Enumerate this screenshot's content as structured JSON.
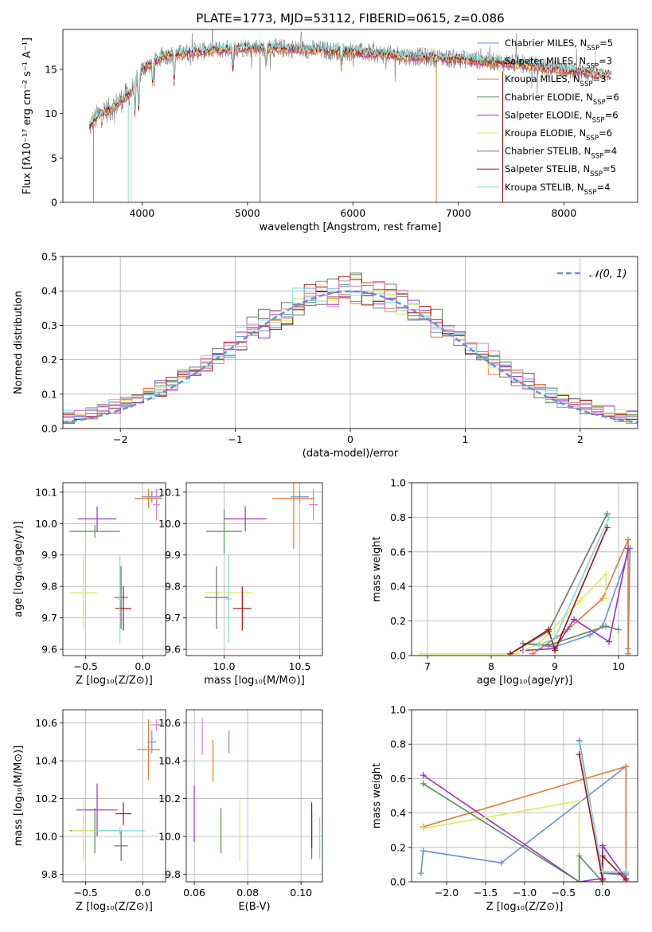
{
  "title": "PLATE=1773, MJD=53112, FIBERID=0615, z=0.086",
  "colors": {
    "chabrier_miles": "#6a8ed6",
    "salpeter_miles": "#5b8c5a",
    "kroupa_miles": "#e07b39",
    "chabrier_elodie": "#5b8c5a",
    "salpeter_elodie": "#9b30c0",
    "kroupa_elodie": "#d8ec5a",
    "chabrier_stelib": "#707070",
    "salpeter_stelib": "#a01010",
    "kroupa_stelib": "#7fdce0",
    "pink": "#e080c0",
    "gaussian": "#6a8ed6"
  },
  "chart_data": [
    {
      "id": "spectrum",
      "type": "line",
      "xlabel": "wavelength [Angstrom, rest frame]",
      "ylabel": "Flux [fλ10⁻¹⁷ erg cm⁻² s⁻¹ A⁻¹]",
      "xlim": [
        3250,
        8700
      ],
      "ylim": [
        0,
        19.5
      ],
      "xticks": [
        4000,
        5000,
        6000,
        7000,
        8000
      ],
      "yticks": [
        0,
        5,
        10,
        15
      ],
      "grid": false,
      "legend": [
        "Chabrier MILES, N_SSP=5",
        "Salpeter MILES, N_SSP=3",
        "Kroupa MILES, N_SSP=3",
        "Chabrier ELODIE, N_SSP=6",
        "Salpeter ELODIE, N_SSP=6",
        "Kroupa ELODIE, N_SSP=6",
        "Chabrier STELIB, N_SSP=4",
        "Salpeter STELIB, N_SSP=5",
        "Kroupa STELIB, N_SSP=4"
      ],
      "legend_position": "right",
      "continuum": [
        [
          3500,
          8.5
        ],
        [
          3600,
          10.0
        ],
        [
          3700,
          10.5
        ],
        [
          3800,
          11.5
        ],
        [
          3900,
          12.5
        ],
        [
          4000,
          15.0
        ],
        [
          4200,
          16.5
        ],
        [
          4500,
          17.0
        ],
        [
          5000,
          17.5
        ],
        [
          5500,
          17.3
        ],
        [
          6000,
          17.0
        ],
        [
          6500,
          16.5
        ],
        [
          7000,
          16.2
        ],
        [
          7500,
          15.7
        ],
        [
          8000,
          15.0
        ],
        [
          8500,
          14.3
        ]
      ],
      "absorption_lines": [
        [
          3934,
          10.0
        ],
        [
          3969,
          10.5
        ],
        [
          4102,
          13.0
        ],
        [
          4305,
          13.5
        ],
        [
          4862,
          15.0
        ],
        [
          5175,
          15.2
        ],
        [
          5890,
          15.3
        ]
      ],
      "model_range": [
        3500,
        8450
      ],
      "data_range": [
        3500,
        8300
      ]
    },
    {
      "id": "residuals",
      "type": "histogram",
      "xlabel": "(data-model)/error",
      "ylabel": "Normed distribution",
      "xlim": [
        -2.5,
        2.5
      ],
      "ylim": [
        0,
        0.5
      ],
      "xticks": [
        -2,
        -1,
        0,
        1,
        2
      ],
      "yticks": [
        0.0,
        0.1,
        0.2,
        0.3,
        0.4,
        0.5
      ],
      "grid": true,
      "legend": "𝒩(0, 1)",
      "legend_position": "top-right",
      "bin_width": 0.1,
      "series_count": 9
    },
    {
      "id": "age-vs-Z",
      "type": "errorbar",
      "xlabel": "Z [log₁₀(Z/Z⊙)]",
      "ylabel": "age  [log₁₀(age/yr)]",
      "xlim": [
        -0.7,
        0.2
      ],
      "ylim": [
        9.58,
        10.13
      ],
      "xticks": [
        -0.5,
        0.0
      ],
      "yticks": [
        9.6,
        9.7,
        9.8,
        9.9,
        10.0,
        10.1
      ],
      "grid": true,
      "points": [
        {
          "c": "chabrier_miles",
          "x": 0.08,
          "xerr": 0.09,
          "y": 10.085,
          "yerr": 0.02
        },
        {
          "c": "salpeter_miles",
          "x": -0.42,
          "xerr": 0.22,
          "y": 9.975,
          "yerr": 0.02
        },
        {
          "c": "kroupa_miles",
          "x": 0.05,
          "xerr": 0.12,
          "y": 10.08,
          "yerr": 0.03
        },
        {
          "c": "salpeter_elodie",
          "x": -0.4,
          "xerr": 0.17,
          "y": 10.015,
          "yerr": 0.04
        },
        {
          "c": "kroupa_elodie",
          "x": -0.52,
          "xerr": 0.12,
          "y": 9.78,
          "yerr": 0.12
        },
        {
          "c": "chabrier_stelib",
          "x": -0.19,
          "xerr": 0.06,
          "y": 9.765,
          "yerr": 0.1
        },
        {
          "c": "salpeter_stelib",
          "x": -0.17,
          "xerr": 0.07,
          "y": 9.73,
          "yerr": 0.07
        },
        {
          "c": "kroupa_stelib",
          "x": -0.2,
          "xerr": 0.02,
          "y": 9.76,
          "yerr": 0.14
        },
        {
          "c": "pink",
          "x": 0.12,
          "xerr": 0.03,
          "y": 10.06,
          "yerr": 0.05
        }
      ]
    },
    {
      "id": "age-vs-mass",
      "type": "errorbar",
      "xlabel": "mass [log₁₀(M/M⊙)]",
      "ylabel": "",
      "xlim": [
        9.75,
        10.65
      ],
      "ylim": [
        9.58,
        10.13
      ],
      "xticks": [
        10.0,
        10.5
      ],
      "yticks": [
        9.6,
        9.7,
        9.8,
        9.9,
        10.0,
        10.1
      ],
      "grid": true,
      "points": [
        {
          "c": "chabrier_miles",
          "x": 10.5,
          "xerr": 0.06,
          "y": 10.085,
          "yerr": 0.02
        },
        {
          "c": "salpeter_miles",
          "x": 10.0,
          "xerr": 0.12,
          "y": 9.975,
          "yerr": 0.07
        },
        {
          "c": "kroupa_miles",
          "x": 10.46,
          "xerr": 0.14,
          "y": 10.08,
          "yerr": 0.16
        },
        {
          "c": "salpeter_elodie",
          "x": 10.14,
          "xerr": 0.14,
          "y": 10.015,
          "yerr": 0.04
        },
        {
          "c": "kroupa_elodie",
          "x": 10.03,
          "xerr": 0.16,
          "y": 9.78,
          "yerr": 0.12
        },
        {
          "c": "chabrier_stelib",
          "x": 9.95,
          "xerr": 0.08,
          "y": 9.765,
          "yerr": 0.1
        },
        {
          "c": "salpeter_stelib",
          "x": 10.12,
          "xerr": 0.06,
          "y": 9.73,
          "yerr": 0.07
        },
        {
          "c": "kroupa_stelib",
          "x": 10.03,
          "xerr": 0.02,
          "y": 9.76,
          "yerr": 0.14
        },
        {
          "c": "pink",
          "x": 10.59,
          "xerr": 0.03,
          "y": 10.06,
          "yerr": 0.05
        }
      ]
    },
    {
      "id": "weight-vs-age",
      "type": "line",
      "xlabel": "age  [log₁₀(age/yr)]",
      "ylabel": "mass weight",
      "xlim": [
        6.75,
        10.3
      ],
      "ylim": [
        0,
        1.0
      ],
      "xticks": [
        7,
        8,
        9,
        10
      ],
      "yticks": [
        0.0,
        0.2,
        0.4,
        0.6,
        0.8,
        1.0
      ],
      "grid": true,
      "series": [
        {
          "c": "chabrier_miles",
          "x": [
            8.5,
            9.0,
            9.55,
            9.75,
            10.18,
            10.15
          ],
          "y": [
            0.07,
            0.05,
            0.12,
            0.17,
            0.62,
            0.04
          ]
        },
        {
          "c": "kroupa_miles",
          "x": [
            8.65,
            9.2,
            9.75,
            10.15,
            10.15
          ],
          "y": [
            0.01,
            0.15,
            0.33,
            0.67,
            0.01
          ]
        },
        {
          "c": "salpeter_elodie",
          "x": [
            8.5,
            9.0,
            9.3,
            9.85,
            10.15
          ],
          "y": [
            0.03,
            0.04,
            0.21,
            0.08,
            0.62
          ]
        },
        {
          "c": "kroupa_elodie",
          "x": [
            6.9,
            8.4,
            8.75,
            9.4,
            9.8,
            9.8
          ],
          "y": [
            0.01,
            0.01,
            0.07,
            0.32,
            0.47,
            0.33
          ]
        },
        {
          "c": "salpeter_miles",
          "x": [
            8.5,
            8.9,
            9.8,
            10.0
          ],
          "y": [
            0.07,
            0.06,
            0.17,
            0.15
          ]
        },
        {
          "c": "chabrier_stelib",
          "x": [
            8.3,
            8.9,
            9.82
          ],
          "y": [
            0.01,
            0.14,
            0.82
          ]
        },
        {
          "c": "salpeter_stelib",
          "x": [
            8.3,
            8.9,
            9.0,
            9.82
          ],
          "y": [
            0.01,
            0.15,
            0.03,
            0.74
          ]
        },
        {
          "c": "kroupa_stelib",
          "x": [
            8.75,
            9.0,
            9.85
          ],
          "y": [
            0.06,
            0.1,
            0.8
          ]
        }
      ]
    },
    {
      "id": "mass-vs-Z",
      "type": "errorbar",
      "xlabel": "Z [log₁₀(Z/Z⊙)]",
      "ylabel": "mass [log₁₀(M/M⊙)]",
      "xlim": [
        -0.7,
        0.2
      ],
      "ylim": [
        9.76,
        10.67
      ],
      "xticks": [
        -0.5,
        0.0
      ],
      "yticks": [
        9.8,
        10.0,
        10.2,
        10.4,
        10.6
      ],
      "grid": true,
      "points": [
        {
          "c": "chabrier_miles",
          "x": 0.08,
          "xerr": 0.04,
          "y": 10.5,
          "yerr": 0.06
        },
        {
          "c": "salpeter_miles",
          "x": -0.42,
          "xerr": 0.22,
          "y": 10.03,
          "yerr": 0.12
        },
        {
          "c": "kroupa_miles",
          "x": 0.05,
          "xerr": 0.1,
          "y": 10.46,
          "yerr": 0.16
        },
        {
          "c": "salpeter_elodie",
          "x": -0.4,
          "xerr": 0.18,
          "y": 10.14,
          "yerr": 0.14
        },
        {
          "c": "kroupa_elodie",
          "x": -0.52,
          "xerr": 0.1,
          "y": 10.03,
          "yerr": 0.16
        },
        {
          "c": "chabrier_stelib",
          "x": -0.19,
          "xerr": 0.06,
          "y": 9.95,
          "yerr": 0.08
        },
        {
          "c": "salpeter_stelib",
          "x": -0.17,
          "xerr": 0.07,
          "y": 10.12,
          "yerr": 0.06
        },
        {
          "c": "kroupa_stelib",
          "x": -0.2,
          "xerr": 0.22,
          "y": 10.03,
          "yerr": 0.02
        },
        {
          "c": "pink",
          "x": 0.12,
          "xerr": 0.05,
          "y": 10.59,
          "yerr": 0.03
        }
      ]
    },
    {
      "id": "mass-vs-ebv",
      "type": "errorbar",
      "xlabel": "E(B-V)",
      "ylabel": "",
      "xlim": [
        0.057,
        0.108
      ],
      "ylim": [
        9.76,
        10.67
      ],
      "xticks": [
        0.06,
        0.08,
        0.1
      ],
      "yticks": [
        9.8,
        10.0,
        10.2,
        10.4,
        10.6
      ],
      "grid": true,
      "points": [
        {
          "c": "chabrier_miles",
          "x": 0.073,
          "xerr": 0,
          "y": 10.5,
          "yerr": 0.06
        },
        {
          "c": "salpeter_miles",
          "x": 0.07,
          "xerr": 0,
          "y": 10.03,
          "yerr": 0.12
        },
        {
          "c": "kroupa_miles",
          "x": 0.067,
          "xerr": 0,
          "y": 10.4,
          "yerr": 0.11
        },
        {
          "c": "salpeter_elodie",
          "x": 0.06,
          "xerr": 0,
          "y": 10.12,
          "yerr": 0.15
        },
        {
          "c": "kroupa_elodie",
          "x": 0.077,
          "xerr": 0,
          "y": 10.03,
          "yerr": 0.16
        },
        {
          "c": "chabrier_stelib",
          "x": 0.104,
          "xerr": 0,
          "y": 10.0,
          "yerr": 0.12
        },
        {
          "c": "salpeter_stelib",
          "x": 0.104,
          "xerr": 0,
          "y": 10.06,
          "yerr": 0.12
        },
        {
          "c": "kroupa_stelib",
          "x": 0.107,
          "xerr": 0,
          "y": 9.99,
          "yerr": 0.11
        },
        {
          "c": "pink",
          "x": 0.063,
          "xerr": 0,
          "y": 10.53,
          "yerr": 0.1
        }
      ]
    },
    {
      "id": "weight-vs-Z",
      "type": "line",
      "xlabel": "Z [log₁₀(Z/Z⊙)]",
      "ylabel": "mass weight",
      "xlim": [
        -2.45,
        0.45
      ],
      "ylim": [
        0,
        1.0
      ],
      "xticks": [
        -2.0,
        -1.5,
        -1.0,
        -0.5,
        0.0
      ],
      "yticks": [
        0.0,
        0.2,
        0.4,
        0.6,
        0.8,
        1.0
      ],
      "grid": true,
      "series": [
        {
          "c": "chabrier_miles",
          "x": [
            -2.33,
            -2.3,
            -1.3,
            0.3,
            0.3,
            0.0,
            0.0
          ],
          "y": [
            0.05,
            0.18,
            0.11,
            0.67,
            0.05,
            0.05,
            0.2
          ]
        },
        {
          "c": "kroupa_miles",
          "x": [
            -2.3,
            0.3,
            0.3
          ],
          "y": [
            0.32,
            0.67,
            0.01
          ]
        },
        {
          "c": "salpeter_elodie",
          "x": [
            -2.3,
            -0.3,
            0.0,
            0.0,
            0.3
          ],
          "y": [
            0.62,
            0.0,
            0.02,
            0.21,
            0.02
          ]
        },
        {
          "c": "kroupa_elodie",
          "x": [
            -2.3,
            -0.3,
            -0.3
          ],
          "y": [
            0.31,
            0.47,
            0.0
          ]
        },
        {
          "c": "salpeter_miles",
          "x": [
            -2.3,
            -0.3,
            -0.3,
            0.0
          ],
          "y": [
            0.57,
            0.0,
            0.15,
            0.0
          ]
        },
        {
          "c": "chabrier_stelib",
          "x": [
            -0.3,
            0.0,
            0.3
          ],
          "y": [
            0.82,
            0.05,
            0.04
          ]
        },
        {
          "c": "salpeter_stelib",
          "x": [
            -0.3,
            0.0,
            0.0,
            0.3
          ],
          "y": [
            0.74,
            0.01,
            0.15,
            0.01
          ]
        },
        {
          "c": "kroupa_stelib",
          "x": [
            -0.3,
            0.0,
            0.3
          ],
          "y": [
            0.8,
            0.06,
            0.06
          ]
        }
      ]
    }
  ]
}
